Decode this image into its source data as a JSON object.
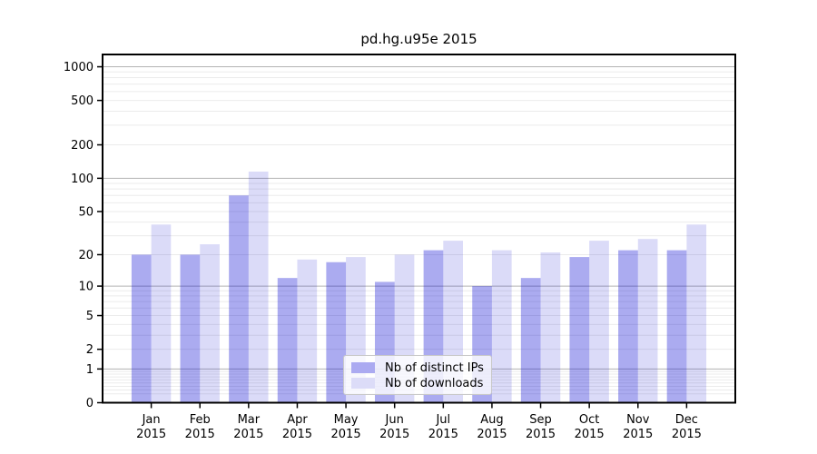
{
  "chart_data": {
    "type": "bar",
    "title": "pd.hg.u95e 2015",
    "xlabel": "",
    "ylabel": "",
    "year_label": "2015",
    "categories": [
      "Jan",
      "Feb",
      "Mar",
      "Apr",
      "May",
      "Jun",
      "Jul",
      "Aug",
      "Sep",
      "Oct",
      "Nov",
      "Dec"
    ],
    "series": [
      {
        "name": "Nb of distinct IPs",
        "values": [
          20,
          20,
          70,
          12,
          17,
          11,
          22,
          10,
          12,
          19,
          22,
          22
        ],
        "bar_fill": "rgba(0,0,210,0.33)",
        "legend_swatch": "#abaaf1"
      },
      {
        "name": "Nb of downloads",
        "values": [
          38,
          25,
          115,
          18,
          19,
          20,
          27,
          22,
          21,
          27,
          28,
          38
        ],
        "bar_fill": "rgba(0,0,204,0.14)",
        "legend_swatch": "#dcdcf8"
      }
    ],
    "yscale": "log1p",
    "ylim": [
      0,
      1288
    ],
    "ytick_values": [
      0,
      1,
      2,
      5,
      10,
      20,
      50,
      100,
      200,
      500,
      1000
    ],
    "ytick_labels": [
      "0",
      "1",
      "2",
      "5",
      "10",
      "20",
      "50",
      "100",
      "200",
      "500",
      "1000"
    ],
    "grid": {
      "major_values": [
        1,
        10,
        100,
        1000
      ],
      "minor_values": [
        0.2,
        0.3,
        0.4,
        0.5,
        0.6,
        0.7,
        0.8,
        0.9,
        2,
        3,
        4,
        5,
        6,
        7,
        8,
        9,
        20,
        30,
        40,
        50,
        60,
        70,
        80,
        90,
        200,
        300,
        400,
        500,
        600,
        700,
        800,
        900
      ],
      "major_color": "#b3b3b3",
      "minor_color": "#ebebeb"
    },
    "legend_position": "lower center",
    "spine_color": "#000000",
    "background_color": "#ffffff"
  }
}
